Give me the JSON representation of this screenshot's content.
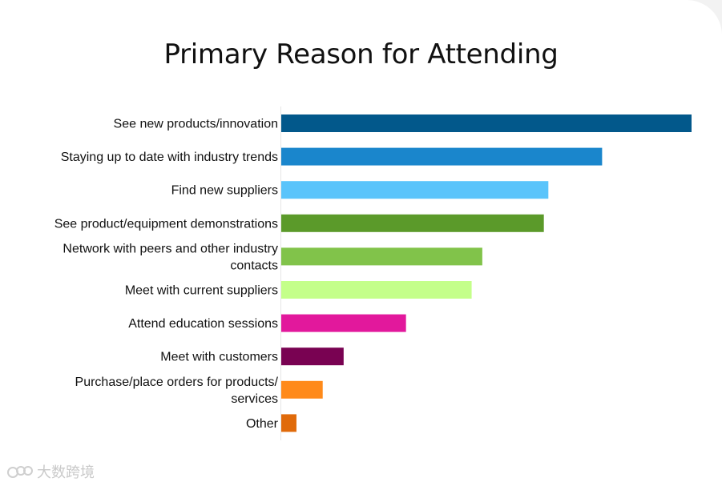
{
  "chart_data": {
    "type": "bar",
    "orientation": "horizontal",
    "title": "Primary Reason for Attending",
    "xlabel": "",
    "ylabel": "",
    "categories": [
      [
        "See new products/innovation"
      ],
      [
        "Staying up to date with industry trends"
      ],
      [
        "Find new suppliers"
      ],
      [
        "See product/equipment demonstrations"
      ],
      [
        "Network with peers and other industry",
        "contacts"
      ],
      [
        "Meet with current suppliers"
      ],
      [
        "Attend education sessions"
      ],
      [
        "Meet with customers"
      ],
      [
        "Purchase/place orders for products/",
        "services"
      ],
      [
        "Other"
      ]
    ],
    "values": [
      100,
      78.2,
      65.1,
      64.0,
      49.0,
      46.4,
      30.4,
      15.2,
      10.1,
      3.7
    ],
    "colors": [
      "#02588b",
      "#1a86cc",
      "#5ac4fb",
      "#5b9a2a",
      "#81c34a",
      "#c4ff8a",
      "#e2189c",
      "#790252",
      "#ff8a1a",
      "#e06a0a"
    ],
    "xlim": [
      0,
      100
    ],
    "grid": false,
    "legend": "none"
  },
  "watermark": {
    "text": "大数跨境"
  }
}
